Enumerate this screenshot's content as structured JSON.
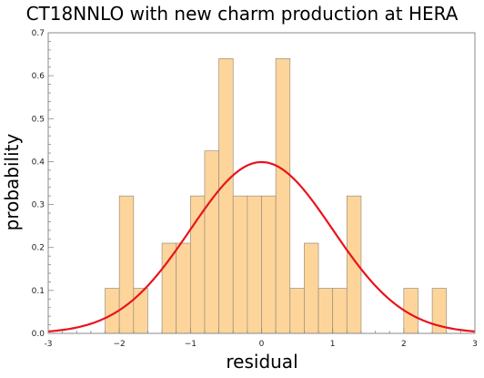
{
  "chart_data": {
    "type": "bar",
    "title": "CT18NNLO with new charm production at HERA",
    "xlabel": "residual",
    "ylabel": "probability",
    "xlim": [
      -3,
      3
    ],
    "ylim": [
      0,
      0.7
    ],
    "xticks": [
      -3,
      -2,
      -1,
      0,
      1,
      2,
      3
    ],
    "xtick_labels": [
      "-3",
      "−2",
      "−1",
      "0",
      "1",
      "2",
      "3"
    ],
    "yticks": [
      0.0,
      0.1,
      0.2,
      0.3,
      0.4,
      0.5,
      0.6,
      0.7
    ],
    "ytick_labels": [
      "0.0",
      "0.1",
      "0.2",
      "0.3",
      "0.4",
      "0.5",
      "0.6",
      "0.7"
    ],
    "bin_width": 0.2,
    "bins": [
      {
        "x0": -2.2,
        "x1": -2.0,
        "value": 0.105
      },
      {
        "x0": -2.0,
        "x1": -1.8,
        "value": 0.32
      },
      {
        "x0": -1.8,
        "x1": -1.6,
        "value": 0.105
      },
      {
        "x0": -1.4,
        "x1": -1.2,
        "value": 0.21
      },
      {
        "x0": -1.2,
        "x1": -1.0,
        "value": 0.21
      },
      {
        "x0": -1.0,
        "x1": -0.8,
        "value": 0.32
      },
      {
        "x0": -0.8,
        "x1": -0.6,
        "value": 0.425
      },
      {
        "x0": -0.6,
        "x1": -0.4,
        "value": 0.64
      },
      {
        "x0": -0.4,
        "x1": -0.2,
        "value": 0.32
      },
      {
        "x0": -0.2,
        "x1": 0.0,
        "value": 0.32
      },
      {
        "x0": 0.0,
        "x1": 0.2,
        "value": 0.32
      },
      {
        "x0": 0.2,
        "x1": 0.4,
        "value": 0.64
      },
      {
        "x0": 0.4,
        "x1": 0.6,
        "value": 0.105
      },
      {
        "x0": 0.6,
        "x1": 0.8,
        "value": 0.21
      },
      {
        "x0": 0.8,
        "x1": 1.0,
        "value": 0.105
      },
      {
        "x0": 1.0,
        "x1": 1.2,
        "value": 0.105
      },
      {
        "x0": 1.2,
        "x1": 1.4,
        "value": 0.32
      },
      {
        "x0": 2.0,
        "x1": 2.2,
        "value": 0.105
      },
      {
        "x0": 2.4,
        "x1": 2.6,
        "value": 0.105
      }
    ],
    "curve": {
      "type": "normal-pdf",
      "mean": 0,
      "sd": 1,
      "color": "#e8141c"
    },
    "bar_fill": "#fdd59b",
    "bar_stroke": "#9b8f7c",
    "grid": false,
    "legend": "none"
  }
}
